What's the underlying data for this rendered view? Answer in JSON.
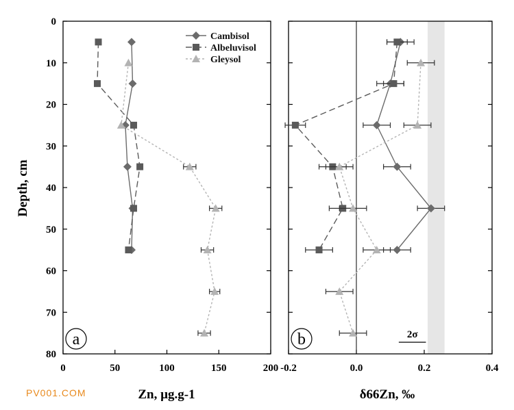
{
  "watermark": "PV001.COM",
  "chart_data": [
    {
      "type": "line",
      "panel_label": "a",
      "xlabel": "Zn, µg.g-1",
      "ylabel": "Depth, cm",
      "xlim": [
        0,
        200
      ],
      "ylim": [
        80,
        0
      ],
      "xticks": [
        "0",
        "50",
        "100",
        "150",
        "200"
      ],
      "yticks": [
        "0",
        "10",
        "20",
        "30",
        "40",
        "50",
        "60",
        "70",
        "80"
      ],
      "grid": false,
      "legend_position": "top-right",
      "series": [
        {
          "name": "Cambisol",
          "marker": "diamond",
          "color": "#6b6b6b",
          "line": "solid",
          "points": [
            [
              66,
              5
            ],
            [
              67,
              15
            ],
            [
              60,
              25
            ],
            [
              62,
              35
            ],
            [
              67,
              45
            ],
            [
              66,
              55
            ]
          ]
        },
        {
          "name": "Albeluvisol",
          "marker": "square",
          "color": "#5a5a5a",
          "line": "dashed",
          "points": [
            [
              34,
              5
            ],
            [
              33,
              15
            ],
            [
              68,
              25
            ],
            [
              74,
              35
            ],
            [
              68,
              45
            ],
            [
              63,
              55
            ]
          ]
        },
        {
          "name": "Gleysol",
          "marker": "triangle",
          "color": "#b3b3b3",
          "line": "dotted",
          "points": [
            [
              63,
              10
            ],
            [
              56,
              25
            ],
            [
              122,
              35
            ],
            [
              147,
              45
            ],
            [
              139,
              55
            ],
            [
              146,
              65
            ],
            [
              136,
              75
            ]
          ],
          "xerr": [
            0,
            0,
            6,
            6,
            6,
            5,
            6
          ]
        }
      ]
    },
    {
      "type": "line",
      "panel_label": "b",
      "xlabel": "δ66Zn, ‰",
      "xlim": [
        -0.2,
        0.4
      ],
      "ylim": [
        80,
        0
      ],
      "xticks": [
        "-0.2",
        "0.0",
        "0.2",
        "0.4"
      ],
      "grid": false,
      "shaded_band": [
        0.21,
        0.26
      ],
      "scale_bar_label": "2σ",
      "scale_bar_width": 0.08,
      "series": [
        {
          "name": "Cambisol",
          "marker": "diamond",
          "color": "#6b6b6b",
          "line": "solid",
          "points": [
            [
              0.13,
              5
            ],
            [
              0.1,
              15
            ],
            [
              0.06,
              25
            ],
            [
              0.12,
              35
            ],
            [
              0.22,
              45
            ],
            [
              0.12,
              55
            ]
          ],
          "xerr": [
            0.04,
            0.04,
            0.04,
            0.04,
            0.04,
            0.04
          ]
        },
        {
          "name": "Albeluvisol",
          "marker": "square",
          "color": "#5a5a5a",
          "line": "dashed",
          "points": [
            [
              0.12,
              5
            ],
            [
              0.11,
              15
            ],
            [
              -0.18,
              25
            ],
            [
              -0.07,
              35
            ],
            [
              -0.04,
              45
            ],
            [
              -0.11,
              55
            ]
          ],
          "xerr": [
            0.03,
            0.03,
            0.03,
            0.04,
            0.04,
            0.04
          ]
        },
        {
          "name": "Gleysol",
          "marker": "triangle",
          "color": "#b3b3b3",
          "line": "dotted",
          "points": [
            [
              0.19,
              10
            ],
            [
              0.18,
              25
            ],
            [
              -0.05,
              35
            ],
            [
              -0.01,
              45
            ],
            [
              0.06,
              55
            ],
            [
              -0.05,
              65
            ],
            [
              -0.01,
              75
            ]
          ],
          "xerr": [
            0.04,
            0.04,
            0.04,
            0.04,
            0.04,
            0.04,
            0.04
          ]
        }
      ]
    }
  ]
}
